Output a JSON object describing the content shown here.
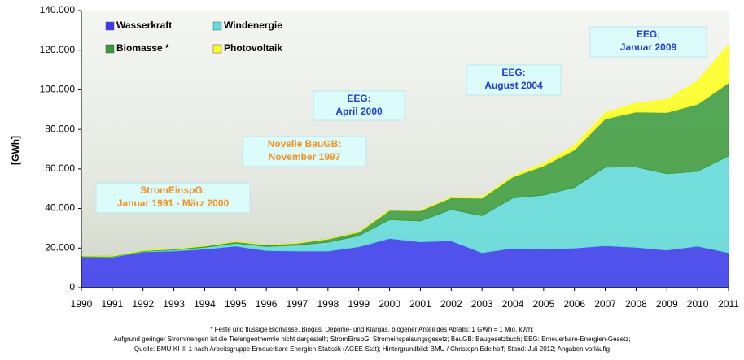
{
  "chart_data": {
    "type": "stacked-area",
    "y_label": "[GWh]",
    "x": [
      1990,
      1991,
      1992,
      1993,
      1994,
      1995,
      1996,
      1997,
      1998,
      1999,
      2000,
      2001,
      2002,
      2003,
      2004,
      2005,
      2006,
      2007,
      2008,
      2009,
      2010,
      2011
    ],
    "xlim": [
      1990,
      2011
    ],
    "xticks": [
      1990,
      1991,
      1992,
      1993,
      1994,
      1995,
      1996,
      1997,
      1998,
      1999,
      2000,
      2001,
      2002,
      2003,
      2004,
      2005,
      2006,
      2007,
      2008,
      2009,
      2010,
      2011
    ],
    "ylim": [
      0,
      140000
    ],
    "yticks": [
      0,
      {
        "value": 20000,
        "label": "20.000"
      },
      {
        "value": 40000,
        "label": "40.000"
      },
      {
        "value": 60000,
        "label": "60.000"
      },
      {
        "value": 80000,
        "label": "80.000"
      },
      {
        "value": 100000,
        "label": "100.000"
      },
      {
        "value": 120000,
        "label": "120.000"
      },
      {
        "value": 140000,
        "label": "140.000"
      }
    ],
    "grid": false,
    "series": [
      {
        "name": "Wasserkraft",
        "color": "#3a3af0",
        "values": [
          15600,
          15400,
          18100,
          18500,
          19500,
          21000,
          18800,
          18500,
          18500,
          20700,
          24900,
          23200,
          23700,
          17700,
          19900,
          19600,
          20000,
          21200,
          20400,
          19000,
          21000,
          17700
        ]
      },
      {
        "name": "Windenergie",
        "color": "#5fdcdc",
        "values": [
          100,
          200,
          300,
          600,
          900,
          1500,
          2000,
          3000,
          4500,
          5500,
          9500,
          10500,
          15800,
          18700,
          25500,
          27200,
          30700,
          39700,
          40600,
          38600,
          37800,
          48900
        ]
      },
      {
        "name": "Biomasse *",
        "color": "#3a9a3a",
        "values": [
          300,
          300,
          300,
          400,
          600,
          700,
          800,
          900,
          1600,
          1800,
          4700,
          5200,
          6000,
          8800,
          10500,
          14700,
          18900,
          24400,
          27800,
          30900,
          33900,
          36900
        ]
      },
      {
        "name": "Photovoltaik",
        "color": "#ffff1a",
        "values": [
          0,
          0,
          0,
          0,
          0,
          0,
          0,
          0,
          0,
          0,
          100,
          100,
          200,
          300,
          600,
          1300,
          2200,
          3100,
          4400,
          6600,
          11700,
          19300
        ]
      }
    ],
    "annotations": [
      {
        "lines": [
          "StromEinspG:",
          "Januar 1991 - März 2000"
        ],
        "color": "#f39222"
      },
      {
        "lines": [
          "Novelle BauGB:",
          "November 1997"
        ],
        "color": "#f39222"
      },
      {
        "lines": [
          "EEG:",
          "April 2000"
        ],
        "color": "#1f3fd8"
      },
      {
        "lines": [
          "EEG:",
          "August  2004"
        ],
        "color": "#1f3fd8"
      },
      {
        "lines": [
          "EEG:",
          "Januar 2009"
        ],
        "color": "#1f3fd8"
      }
    ],
    "footnotes": [
      "* Feste und flüssige Biomasse, Biogas, Deponie- und Klärgas, biogener Anteil des Abfalls; 1 GWh = 1 Mio. kWh;",
      "Aufgrund geringer Strommengen ist die Tiefengeothermie nicht dargestellt; StromEinspG: Stromeinspeisungsgesetz; BauGB: Baugesetzbuch; EEG: Erneuerbare-Energien-Gesetz;",
      "Quelle: BMU-KI III 1 nach Arbeitsgruppe Erneuerbare Energien-Statistik (AGEE-Stat); Hintergrundbild: BMU / Christoph Edelhoff; Stand: Juli 2012; Angaben vorläufig"
    ]
  }
}
